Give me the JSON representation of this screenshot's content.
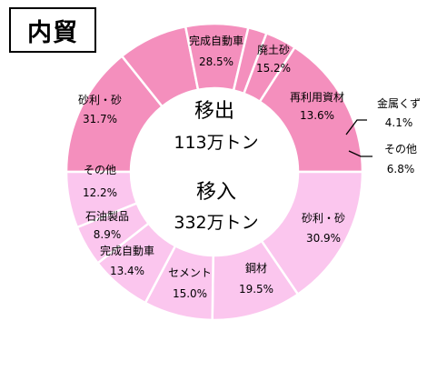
{
  "title": "内貿",
  "colors": {
    "outbound": "#f48fbd",
    "inbound": "#fbc6ee",
    "divider": "#ffffff"
  },
  "center": {
    "outbound_title": "移出",
    "outbound_total": "113万トン",
    "inbound_title": "移入",
    "inbound_total": "332万トン"
  },
  "chart_data": {
    "type": "pie",
    "title": "内貿",
    "groups": [
      {
        "name": "移出",
        "total": "113万トン",
        "slices": [
          {
            "label": "完成自動車",
            "value": 28.5,
            "text": "28.5%"
          },
          {
            "label": "廃土砂",
            "value": 15.2,
            "text": "15.2%"
          },
          {
            "label": "再利用資材",
            "value": 13.6,
            "text": "13.6%"
          },
          {
            "label": "金属くず",
            "value": 4.1,
            "text": "4.1%"
          },
          {
            "label": "その他",
            "value": 6.8,
            "text": "6.8%"
          },
          {
            "label": "砂利・砂",
            "value": 31.7,
            "text": "31.7%"
          }
        ]
      },
      {
        "name": "移入",
        "total": "332万トン",
        "slices": [
          {
            "label": "砂利・砂",
            "value": 30.9,
            "text": "30.9%"
          },
          {
            "label": "鋼材",
            "value": 19.5,
            "text": "19.5%"
          },
          {
            "label": "セメント",
            "value": 15.0,
            "text": "15.0%"
          },
          {
            "label": "完成自動車",
            "value": 13.4,
            "text": "13.4%"
          },
          {
            "label": "石油製品",
            "value": 8.9,
            "text": "8.9%"
          },
          {
            "label": "その他",
            "value": 12.2,
            "text": "12.2%"
          }
        ]
      }
    ]
  }
}
